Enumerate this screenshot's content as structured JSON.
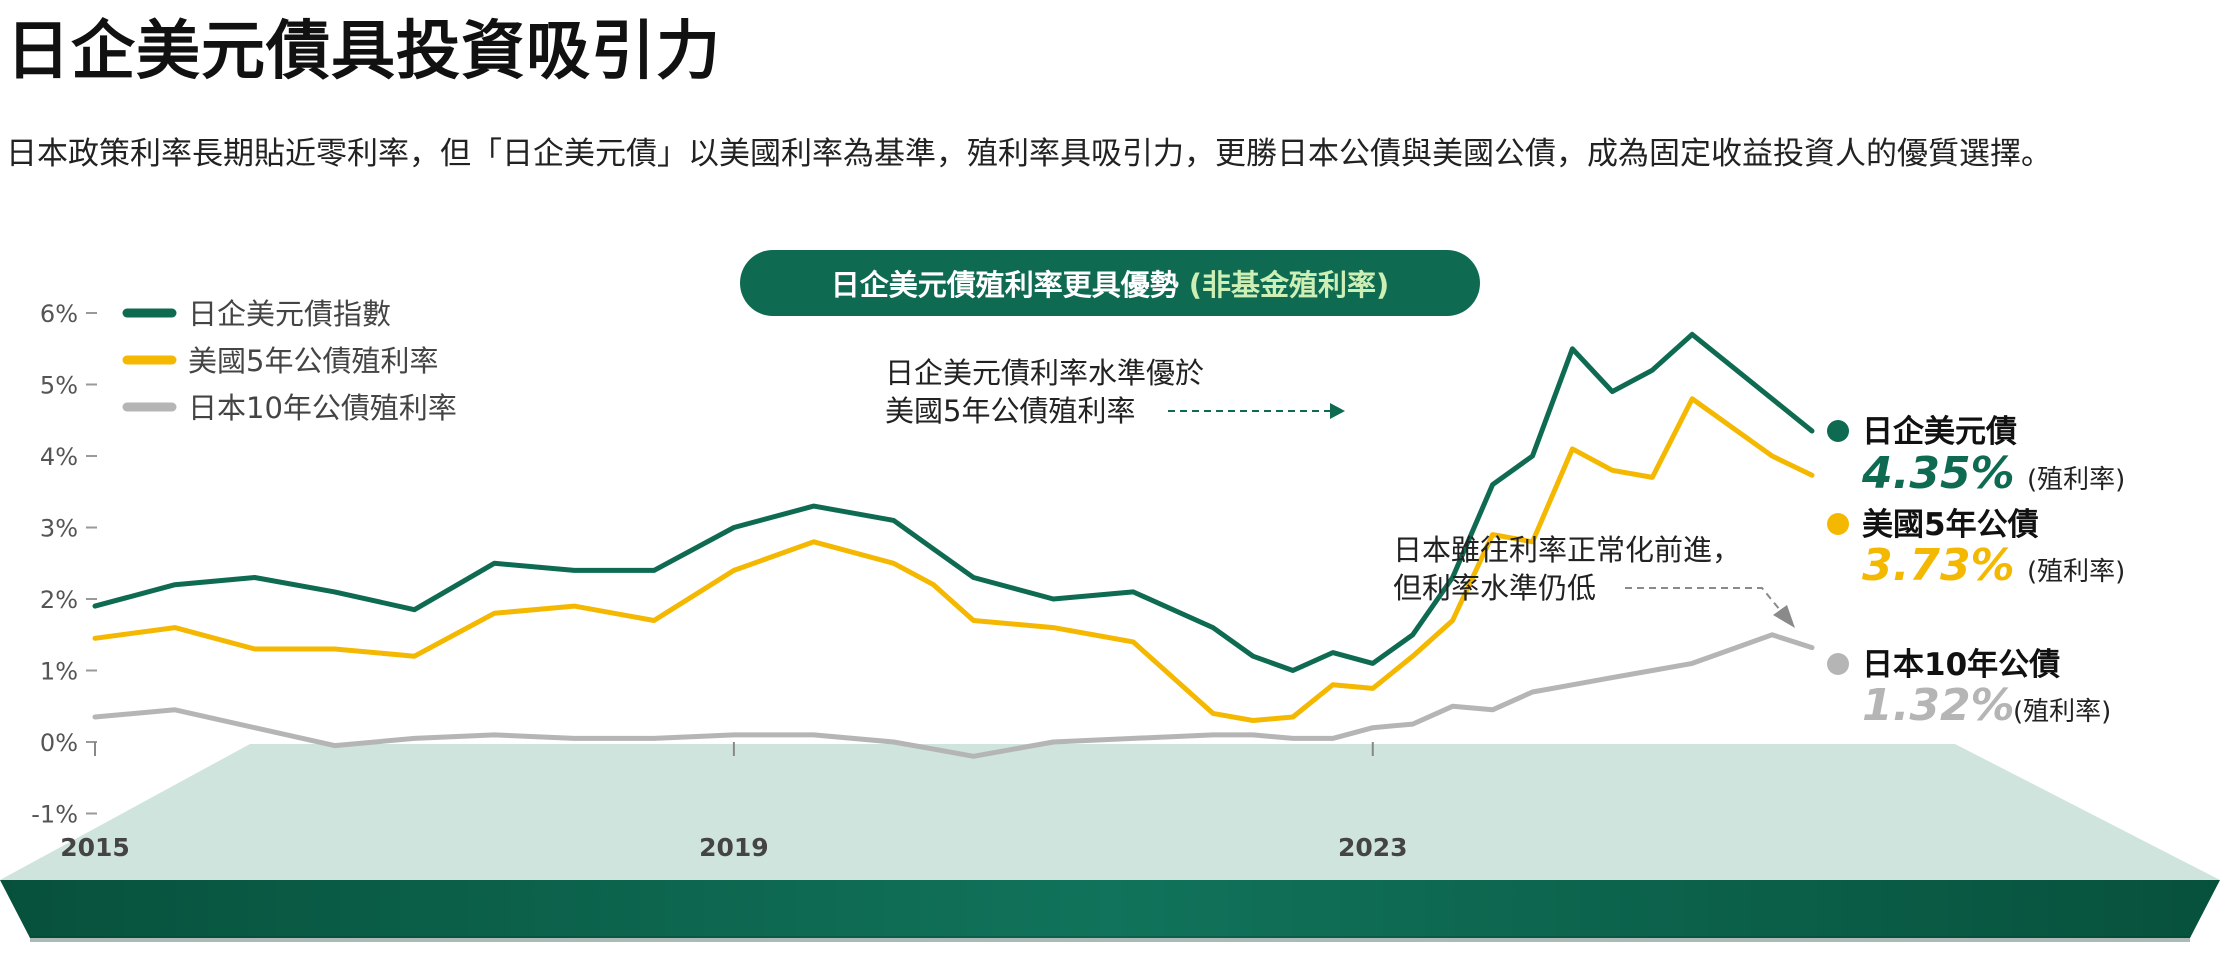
{
  "header": {
    "title": "日企美元債具投資吸引力",
    "subtitle": "日本政策利率長期貼近零利率，但「日企美元債」以美國利率為基準，殖利率具吸引力，更勝日本公債與美國公債，成為固定收益投資人的優質選擇。"
  },
  "pill": {
    "main": "日企美元債殖利率更具優勢",
    "highlight": "(非基金殖利率)"
  },
  "annotations": {
    "a1_line1": "日企美元債利率水準優於",
    "a1_line2": "美國5年公債殖利率",
    "a2_line1": "日本雖往利率正常化前進，",
    "a2_line2": "但利率水準仍低"
  },
  "end_labels": [
    {
      "name": "日企美元債",
      "value": "4.35%",
      "unit": "(殖利率)"
    },
    {
      "name": "美國5年公債",
      "value": "3.73%",
      "unit": "(殖利率)"
    },
    {
      "name": "日本10年公債",
      "value": "1.32%",
      "unit": "(殖利率)"
    }
  ],
  "colors": {
    "jp_usd": "#0e6b52",
    "us5": "#f5b800",
    "jp10": "#b5b5b5",
    "platform": "#cfe4dc",
    "slab_dark": "#07513c",
    "slab_mid": "#0e6e57",
    "pill": "#0e6b52"
  },
  "chart_data": {
    "type": "line",
    "x_ticks": [
      "2015",
      "2019",
      "2023"
    ],
    "ylim": [
      -1,
      6
    ],
    "y_ticks": [
      -1,
      0,
      1,
      2,
      3,
      4,
      5,
      6
    ],
    "y_tick_labels": [
      "-1%",
      "0%",
      "1%",
      "2%",
      "3%",
      "4%",
      "5%",
      "6%"
    ],
    "legend_position": "top-left",
    "x": [
      2015.0,
      2015.5,
      2016.0,
      2016.5,
      2017.0,
      2017.5,
      2018.0,
      2018.5,
      2019.0,
      2019.5,
      2020.0,
      2020.25,
      2020.5,
      2021.0,
      2021.5,
      2022.0,
      2022.25,
      2022.5,
      2022.75,
      2023.0,
      2023.25,
      2023.5,
      2023.75,
      2024.0,
      2024.25,
      2024.5,
      2024.75,
      2025.0,
      2025.5,
      2025.75
    ],
    "series": [
      {
        "name": "日企美元債指數",
        "color": "#0e6b52",
        "values": [
          1.9,
          2.2,
          2.3,
          2.1,
          1.85,
          2.5,
          2.4,
          2.4,
          3.0,
          3.3,
          3.1,
          2.7,
          2.3,
          2.0,
          2.1,
          1.6,
          1.2,
          1.0,
          1.25,
          1.1,
          1.5,
          2.3,
          3.6,
          4.0,
          5.5,
          4.9,
          5.2,
          5.7,
          4.8,
          4.35
        ]
      },
      {
        "name": "美國5年公債殖利率",
        "color": "#f5b800",
        "values": [
          1.45,
          1.6,
          1.3,
          1.3,
          1.2,
          1.8,
          1.9,
          1.7,
          2.4,
          2.8,
          2.5,
          2.2,
          1.7,
          1.6,
          1.4,
          0.4,
          0.3,
          0.35,
          0.8,
          0.75,
          1.2,
          1.7,
          2.9,
          2.8,
          4.1,
          3.8,
          3.7,
          4.8,
          4.0,
          3.73
        ]
      },
      {
        "name": "日本10年公債殖利率",
        "color": "#b5b5b5",
        "values": [
          0.35,
          0.45,
          0.2,
          -0.05,
          0.05,
          0.1,
          0.05,
          0.05,
          0.1,
          0.1,
          0.0,
          -0.1,
          -0.2,
          0.0,
          0.05,
          0.1,
          0.1,
          0.05,
          0.05,
          0.2,
          0.25,
          0.5,
          0.45,
          0.7,
          0.8,
          0.9,
          1.0,
          1.1,
          1.5,
          1.32
        ]
      }
    ]
  }
}
